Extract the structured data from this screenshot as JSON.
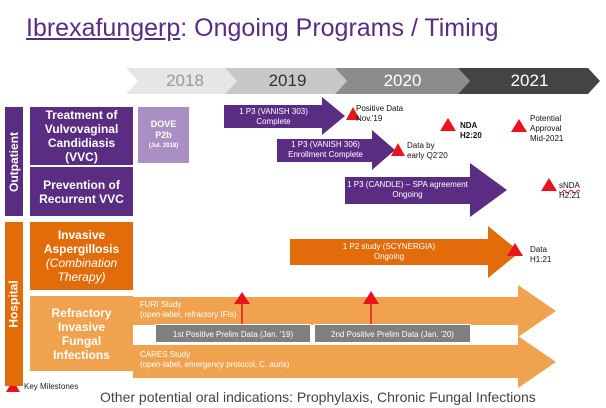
{
  "title": {
    "drug": "Ibrexafungerp",
    "rest": ": Ongoing Programs / Timing"
  },
  "years": [
    "2018",
    "2019",
    "2020",
    "2021"
  ],
  "categories": {
    "outpatient": "Outpatient",
    "hospital": "Hospital"
  },
  "indications": {
    "vvc": "Treatment of Vulvovaginal Candidiasis (VVC)",
    "rvvc": "Prevention of Recurrent VVC",
    "ia_line1": "Invasive Aspergillosis",
    "ia_line2": "(Combination Therapy)",
    "rifi": "Refractory Invasive Fungal Infections"
  },
  "dove": {
    "line1": "DOVE",
    "line2": "P2b",
    "line3": "(Jul. 2018)"
  },
  "programs": {
    "v303_1": "1 P3 (VANISH 303)",
    "v303_2": "Complete",
    "v306_1": "1 P3 (VANISH 306)",
    "v306_2": "Enrollment Complete",
    "candle_1": "1 P3 (CANDLE) –  SPA agreement",
    "candle_2": "Ongoing",
    "scy_1": "1 P2 study (SCYNERGIA)",
    "scy_2": "Ongoing",
    "furi_1": "FURI Study",
    "furi_2": "(open-label, refractory IFIs)",
    "cares_1": "CARES Study",
    "cares_2": "(open-label, emergency protocol, C. auris)"
  },
  "milestones": {
    "pos": [
      "Positive Data",
      "Nov.'19"
    ],
    "nda": [
      "NDA",
      "H2:20"
    ],
    "approval": [
      "Potential",
      "Approval",
      "Mid-2021"
    ],
    "data306": [
      "Data by",
      "early Q2'20"
    ],
    "snda": [
      "sNDA",
      "H2:21"
    ],
    "scy": [
      "Data",
      "H1:21"
    ],
    "prelim1": "1st Positive Prelim Data (Jan. '19)",
    "prelim2": "2nd Positive Prelim Data (Jan. '20)"
  },
  "legend": "Key Milestones",
  "footer": "Other potential oral indications: Prophylaxis, Chronic Fungal Infections",
  "colors": {
    "purple": "#5a2d82",
    "light_purple": "#a98fc2",
    "orange_dark": "#e36c0a",
    "orange_light": "#f0a24e",
    "milestone_red": "#e8141b",
    "gray": "#7f7f7f"
  }
}
